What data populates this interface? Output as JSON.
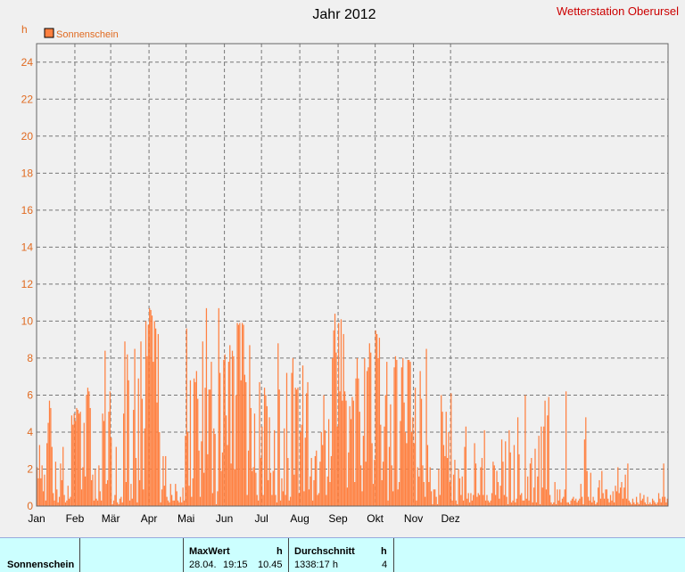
{
  "chart_data": {
    "type": "bar",
    "title": "Jahr 2012",
    "station": "Wetterstation Oberursel",
    "ylabel": "h",
    "ylim": [
      0,
      25
    ],
    "yticks": [
      "0",
      "2",
      "4",
      "6",
      "8",
      "10",
      "12",
      "14",
      "16",
      "18",
      "20",
      "22",
      "24"
    ],
    "months": [
      "Jan",
      "Feb",
      "Mär",
      "Apr",
      "Mai",
      "Jun",
      "Jul",
      "Aug",
      "Sep",
      "Okt",
      "Nov",
      "Dez"
    ],
    "grid": true,
    "legend_position": "top-left",
    "series": [
      {
        "name": "Sonnenschein",
        "color": "#ff8040",
        "values": [
          2.1,
          1.5,
          3.3,
          1.5,
          2.2,
          0.8,
          1.7,
          0.3,
          3.4,
          4.5,
          5.7,
          5.3,
          3.2,
          0.7,
          0.3,
          2.4,
          0.9,
          0.2,
          0.5,
          2.3,
          1.4,
          3.2,
          0.6,
          0.2,
          0.3,
          1.1,
          0.4,
          0.5,
          4.9,
          4.4,
          5.0,
          4.6,
          5.3,
          5.2,
          5.0,
          5.1,
          0.9,
          2.1,
          4.5,
          1.6,
          6.0,
          6.4,
          6.2,
          5.3,
          1.4,
          1.7,
          0.3,
          2.0,
          0.4,
          0.3,
          2.2,
          0.8,
          0.3,
          5.0,
          4.6,
          8.4,
          1.2,
          1.4,
          5.1,
          6.2,
          3.7,
          0.1,
          0.3,
          0.6,
          3.2,
          0.2,
          0.1,
          0.4,
          0.5,
          0.2,
          5.0,
          8.9,
          1.3,
          8.2,
          6.8,
          0.3,
          1.2,
          0.4,
          5.2,
          8.5,
          2.6,
          0.2,
          6.9,
          1.4,
          8.9,
          5.8,
          0.9,
          4.2,
          10.0,
          8.1,
          9.8,
          10.7,
          10.6,
          10.3,
          7.8,
          10.0,
          9.6,
          5.6,
          9.3,
          4.0,
          0.2,
          0.9,
          2.7,
          1.1,
          2.7,
          0.5,
          0.3,
          0.2,
          1.2,
          0.6,
          0.3,
          0.3,
          1.2,
          0.8,
          0.3,
          0.2,
          0.5,
          0.2,
          1.0,
          0.3,
          3.8,
          9.6,
          4.0,
          1.1,
          6.8,
          0.5,
          1.5,
          6.9,
          6.7,
          7.3,
          5.8,
          3.0,
          0.5,
          3.5,
          8.9,
          1.8,
          6.4,
          10.7,
          2.8,
          6.3,
          6.3,
          7.8,
          0.7,
          4.2,
          3.9,
          0.1,
          0.8,
          10.7,
          7.2,
          1.9,
          2.9,
          7.9,
          8.2,
          4.9,
          3.3,
          7.8,
          8.7,
          2.3,
          8.4,
          8.1,
          2.0,
          6.0,
          9.9,
          9.8,
          9.9,
          6.8,
          9.9,
          9.8,
          7.1,
          6.7,
          0.6,
          3.0,
          8.7,
          5.3,
          1.9,
          2.1,
          5.0,
          1.8,
          0.6,
          0.3,
          6.7,
          2.6,
          4.3,
          0.6,
          6.4,
          6.0,
          5.4,
          1.4,
          4.8,
          1.8,
          0.6,
          1.9,
          4.1,
          0.6,
          0.2,
          8.8,
          6.3,
          0.3,
          1.5,
          0.8,
          4.2,
          0.6,
          7.2,
          2.6,
          0.3,
          0.5,
          7.2,
          8.0,
          1.7,
          6.4,
          6.3,
          6.4,
          0.7,
          4.0,
          4.4,
          7.6,
          0.8,
          3.7,
          6.1,
          6.7,
          0.9,
          1.6,
          2.6,
          0.3,
          1.4,
          2.7,
          3.0,
          0.6,
          0.7,
          2.4,
          4.0,
          3.3,
          6.0,
          4.1,
          0.6,
          1.6,
          4.7,
          1.3,
          2.7,
          8.0,
          9.5,
          10.4,
          8.3,
          4.3,
          9.9,
          6.2,
          10.1,
          5.7,
          9.3,
          6.2,
          5.7,
          1.0,
          2.9,
          5.4,
          4.7,
          5.9,
          5.7,
          1.3,
          6.9,
          8.0,
          6.9,
          5.1,
          2.2,
          0.8,
          3.8,
          8.0,
          2.4,
          7.3,
          7.5,
          8.8,
          8.3,
          3.4,
          1.2,
          2.5,
          9.5,
          9.3,
          8.0,
          9.1,
          4.4,
          1.4,
          2.4,
          4.3,
          6.0,
          7.8,
          0.3,
          3.2,
          5.5,
          2.2,
          0.8,
          7.5,
          8.1,
          7.9,
          0.9,
          1.3,
          4.6,
          7.5,
          8.0,
          5.6,
          4.0,
          3.4,
          7.9,
          7.9,
          7.8,
          4.0,
          4.8,
          3.4,
          6.4,
          0.3,
          2.1,
          1.6,
          7.3,
          5.8,
          2.2,
          1.3,
          0.5,
          8.5,
          3.3,
          1.3,
          2.1,
          0.8,
          0.1,
          0.9,
          0.9,
          0.5,
          0.1,
          2.0,
          0.6,
          6.0,
          5.1,
          3.3,
          2.7,
          5.1,
          2.6,
          4.0,
          1.3,
          6.1,
          0.3,
          1.7,
          2.5,
          0.3,
          0.1,
          2.0,
          1.5,
          0.6,
          1.6,
          0.3,
          3.2,
          4.3,
          0.4,
          0.7,
          0.2,
          0.7,
          0.3,
          0.6,
          3.4,
          2.3,
          0.5,
          0.7,
          0.6,
          2.1,
          2.6,
          0.6,
          4.1,
          0.3,
          0.6,
          0.3,
          0.2,
          0.3,
          0.7,
          2.4,
          2.2,
          0.6,
          1.9,
          1.3,
          0.4,
          1.1,
          3.6,
          2.4,
          0.6,
          3.5,
          0.5,
          0.1,
          4.1,
          2.9,
          0.2,
          0.3,
          3.3,
          0.2,
          0.4,
          4.8,
          2.8,
          0.6,
          0.7,
          0.3,
          0.3,
          6.0,
          0.4,
          1.6,
          0.3,
          2.3,
          2.6,
          0.2,
          1.0,
          3.1,
          0.2,
          1.6,
          3.8,
          0.1,
          4.3,
          1.0,
          4.3,
          5.7,
          0.9,
          4.9,
          5.9,
          0.6,
          0.2,
          0.1,
          0.2,
          1.3,
          0.1,
          0.9,
          0.3,
          0.9,
          0.2,
          0.4,
          0.5,
          0.9,
          6.2,
          0.2,
          0.2,
          0.1,
          0.3,
          0.4,
          0.5,
          0.3,
          0.4,
          0.2,
          0.3,
          0.4,
          1.2,
          0.5,
          0.1,
          3.6,
          4.8,
          1.9,
          0.5,
          0.3,
          1.8,
          0.2,
          0.5,
          0.3,
          0.1,
          0.2,
          1.0,
          1.4,
          0.4,
          1.9,
          0.7,
          0.4,
          0.9,
          0.9,
          0.4,
          0.2,
          0.6,
          0.3,
          0.8,
          0.2,
          1.1,
          0.8,
          2.1,
          0.7,
          1.0,
          1.3,
          0.4,
          1.0,
          1.7,
          0.4,
          2.3,
          0.3,
          0.2,
          0.1,
          0.4,
          0.2,
          0.1,
          0.5,
          0.2,
          0.1,
          0.7,
          0.3,
          0.4,
          0.6,
          0.2,
          0.1,
          0.5,
          0.1,
          0.2,
          0.1,
          0.4,
          0.3,
          0.2,
          0.1,
          0.2,
          0.7,
          0.4,
          0.2,
          0.5,
          2.3,
          0.5,
          0.2,
          0.4
        ]
      }
    ]
  },
  "stats": {
    "row_label": "Sonnenschein",
    "max_header": "MaxWert",
    "max_unit": "h",
    "max_date": "28.04.",
    "max_time": "19:15",
    "max_value": "10.45",
    "avg_header": "Durchschnitt",
    "avg_unit": "h",
    "avg_total": "1338:17 h",
    "avg_value": "4"
  }
}
